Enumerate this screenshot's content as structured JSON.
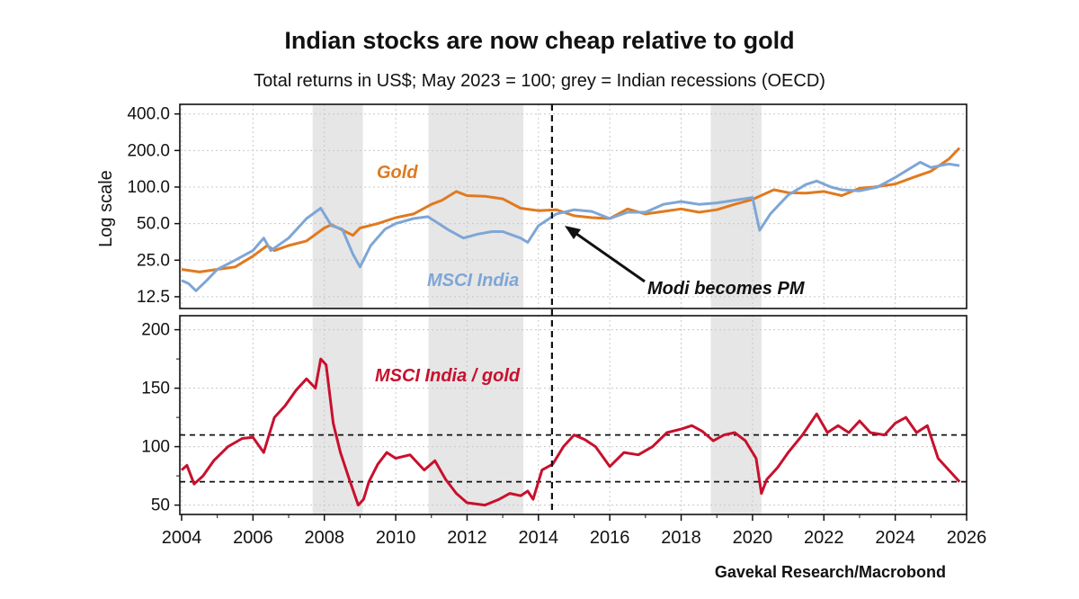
{
  "title": "Indian stocks are now cheap relative to gold",
  "subtitle": "Total returns in US$; May 2023 = 100; grey = Indian recessions (OECD)",
  "source": "Gavekal Research/Macrobond",
  "colors": {
    "gold": "#e07a1f",
    "msci": "#7ea6d6",
    "ratio": "#c8102e",
    "recession": "#e6e6e6"
  },
  "chart_data": [
    {
      "type": "line",
      "ylabel": "Log scale",
      "yscale": "log",
      "ylim": [
        10,
        480
      ],
      "xlim": [
        2003.95,
        2026.0
      ],
      "yticks": [
        400,
        200,
        100,
        50,
        25,
        12.5
      ],
      "ytick_labels": [
        "400.0",
        "200.0",
        "100.0",
        "50.0",
        "25.0",
        "12.5"
      ],
      "recessions": [
        [
          2007.67,
          2009.08
        ],
        [
          2010.92,
          2013.58
        ],
        [
          2018.83,
          2020.25
        ]
      ],
      "vline": 2014.38,
      "annotations": {
        "gold": "Gold",
        "msci": "MSCI India",
        "modi": "Modi becomes PM"
      },
      "series": [
        {
          "name": "Gold",
          "color": "#e07a1f",
          "x": [
            2004.0,
            2004.5,
            2005.0,
            2005.5,
            2006.0,
            2006.4,
            2006.6,
            2007.0,
            2007.5,
            2008.0,
            2008.2,
            2008.8,
            2009.0,
            2009.5,
            2010.0,
            2010.5,
            2011.0,
            2011.3,
            2011.7,
            2012.0,
            2012.5,
            2013.0,
            2013.5,
            2014.0,
            2014.5,
            2015.0,
            2015.5,
            2016.0,
            2016.5,
            2017.0,
            2017.5,
            2018.0,
            2018.5,
            2019.0,
            2019.5,
            2020.0,
            2020.6,
            2021.0,
            2021.5,
            2022.0,
            2022.5,
            2023.0,
            2023.4,
            2024.0,
            2024.5,
            2025.0,
            2025.5,
            2025.8
          ],
          "y": [
            21,
            20,
            21,
            22,
            27,
            33,
            30,
            33,
            36,
            46,
            49,
            40,
            46,
            50,
            56,
            60,
            72,
            78,
            92,
            85,
            84,
            80,
            67,
            64,
            65,
            58,
            56,
            55,
            66,
            60,
            63,
            66,
            62,
            65,
            72,
            79,
            95,
            90,
            89,
            92,
            85,
            98,
            100,
            106,
            120,
            135,
            170,
            210
          ]
        },
        {
          "name": "MSCI India",
          "color": "#7ea6d6",
          "x": [
            2004.0,
            2004.2,
            2004.4,
            2004.7,
            2005.0,
            2005.5,
            2006.0,
            2006.3,
            2006.5,
            2007.0,
            2007.5,
            2007.9,
            2008.2,
            2008.5,
            2008.8,
            2009.0,
            2009.3,
            2009.7,
            2010.0,
            2010.5,
            2010.9,
            2011.5,
            2011.9,
            2012.3,
            2012.7,
            2013.0,
            2013.5,
            2013.7,
            2014.0,
            2014.5,
            2015.0,
            2015.5,
            2016.0,
            2016.5,
            2017.0,
            2017.5,
            2018.0,
            2018.5,
            2019.0,
            2019.5,
            2020.0,
            2020.2,
            2020.5,
            2021.0,
            2021.5,
            2021.8,
            2022.2,
            2022.5,
            2023.0,
            2023.5,
            2024.0,
            2024.7,
            2025.0,
            2025.5,
            2025.8
          ],
          "y": [
            17,
            16,
            14,
            17,
            21,
            25,
            30,
            38,
            30,
            38,
            55,
            67,
            48,
            45,
            28,
            22,
            33,
            45,
            50,
            55,
            57,
            44,
            38,
            41,
            43,
            43,
            38,
            35,
            48,
            60,
            65,
            63,
            55,
            62,
            62,
            72,
            76,
            72,
            74,
            78,
            82,
            44,
            60,
            86,
            105,
            112,
            100,
            95,
            93,
            100,
            120,
            160,
            145,
            155,
            150
          ]
        },
        {
          "name": "MSCI India / gold",
          "color": "#c8102e",
          "panel": "bottom",
          "x": [
            2004.0,
            2004.15,
            2004.35,
            2004.6,
            2004.9,
            2005.3,
            2005.7,
            2006.0,
            2006.3,
            2006.6,
            2006.9,
            2007.2,
            2007.5,
            2007.75,
            2007.9,
            2008.05,
            2008.25,
            2008.45,
            2008.7,
            2008.95,
            2009.1,
            2009.25,
            2009.5,
            2009.75,
            2010.0,
            2010.4,
            2010.8,
            2011.1,
            2011.4,
            2011.7,
            2012.0,
            2012.5,
            2012.9,
            2013.2,
            2013.5,
            2013.7,
            2013.85,
            2014.1,
            2014.4,
            2014.7,
            2015.0,
            2015.3,
            2015.6,
            2016.0,
            2016.4,
            2016.8,
            2017.2,
            2017.6,
            2018.0,
            2018.3,
            2018.6,
            2018.9,
            2019.2,
            2019.5,
            2019.8,
            2020.1,
            2020.25,
            2020.4,
            2020.7,
            2021.0,
            2021.4,
            2021.8,
            2022.1,
            2022.4,
            2022.7,
            2023.0,
            2023.3,
            2023.7,
            2024.0,
            2024.3,
            2024.6,
            2024.9,
            2025.2,
            2025.5,
            2025.8
          ],
          "y": [
            80,
            84,
            68,
            75,
            88,
            100,
            107,
            108,
            95,
            125,
            135,
            148,
            158,
            150,
            175,
            170,
            120,
            95,
            72,
            50,
            55,
            70,
            85,
            95,
            90,
            93,
            80,
            88,
            72,
            60,
            52,
            50,
            55,
            60,
            58,
            62,
            55,
            80,
            85,
            100,
            110,
            106,
            100,
            83,
            95,
            93,
            100,
            112,
            115,
            118,
            113,
            105,
            110,
            112,
            105,
            90,
            60,
            72,
            82,
            95,
            110,
            128,
            112,
            118,
            112,
            122,
            112,
            110,
            120,
            125,
            112,
            118,
            90,
            80,
            70
          ]
        }
      ],
      "bottom_panel": {
        "ylim": [
          42,
          212
        ],
        "yticks": [
          200,
          150,
          100,
          50
        ],
        "ytick_labels": [
          "200",
          "150",
          "100",
          "50"
        ],
        "hlines": [
          110,
          70
        ],
        "annotation": "MSCI India / gold"
      },
      "xticks": [
        2004,
        2006,
        2008,
        2010,
        2012,
        2014,
        2016,
        2018,
        2020,
        2022,
        2024,
        2026
      ],
      "xtick_labels": [
        "2004",
        "2006",
        "2008",
        "2010",
        "2012",
        "2014",
        "2016",
        "2018",
        "2020",
        "2022",
        "2024",
        "2026"
      ]
    }
  ]
}
